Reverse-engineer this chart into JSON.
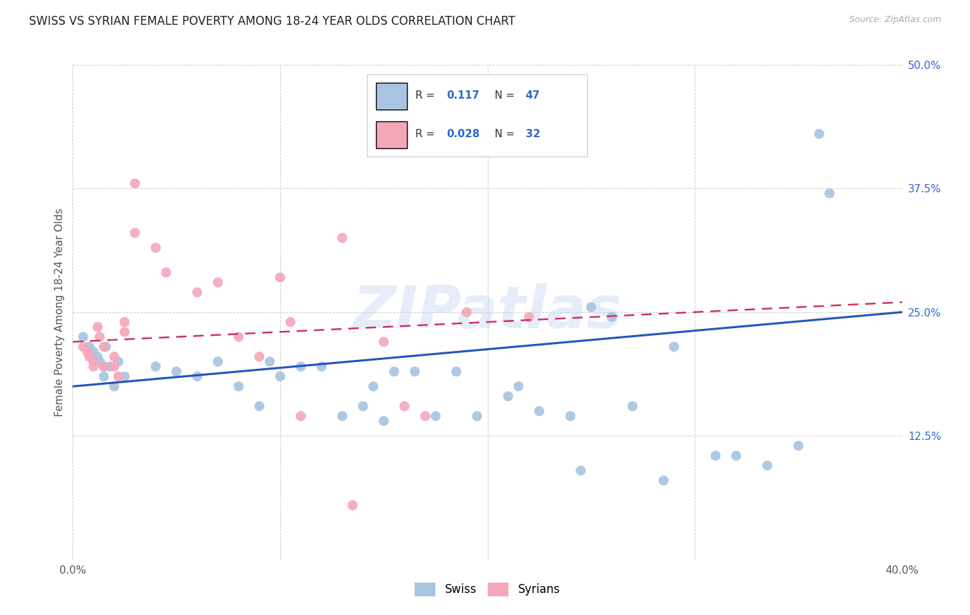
{
  "title": "SWISS VS SYRIAN FEMALE POVERTY AMONG 18-24 YEAR OLDS CORRELATION CHART",
  "source": "Source: ZipAtlas.com",
  "ylabel": "Female Poverty Among 18-24 Year Olds",
  "xlim": [
    0.0,
    0.4
  ],
  "ylim": [
    0.0,
    0.5
  ],
  "xticks": [
    0.0,
    0.1,
    0.2,
    0.3,
    0.4
  ],
  "yticks": [
    0.0,
    0.125,
    0.25,
    0.375,
    0.5
  ],
  "swiss_color": "#a8c4e0",
  "syrian_color": "#f4a7b9",
  "swiss_line_color": "#2255bb",
  "syrian_line_color": "#cc3366",
  "accent_color": "#3366cc",
  "swiss_line_start_y": 0.175,
  "swiss_line_end_y": 0.25,
  "syrian_line_start_y": 0.22,
  "syrian_line_end_y": 0.26,
  "swiss_x": [
    0.005,
    0.008,
    0.01,
    0.012,
    0.013,
    0.015,
    0.015,
    0.016,
    0.018,
    0.02,
    0.022,
    0.025,
    0.04,
    0.05,
    0.06,
    0.07,
    0.08,
    0.09,
    0.095,
    0.1,
    0.11,
    0.12,
    0.13,
    0.14,
    0.145,
    0.15,
    0.155,
    0.165,
    0.175,
    0.185,
    0.195,
    0.21,
    0.215,
    0.225,
    0.24,
    0.245,
    0.25,
    0.26,
    0.27,
    0.285,
    0.29,
    0.31,
    0.32,
    0.335,
    0.35,
    0.36,
    0.365
  ],
  "swiss_y": [
    0.225,
    0.215,
    0.21,
    0.205,
    0.2,
    0.195,
    0.185,
    0.215,
    0.195,
    0.175,
    0.2,
    0.185,
    0.195,
    0.19,
    0.185,
    0.2,
    0.175,
    0.155,
    0.2,
    0.185,
    0.195,
    0.195,
    0.145,
    0.155,
    0.175,
    0.14,
    0.19,
    0.19,
    0.145,
    0.19,
    0.145,
    0.165,
    0.175,
    0.15,
    0.145,
    0.09,
    0.255,
    0.245,
    0.155,
    0.08,
    0.215,
    0.105,
    0.105,
    0.095,
    0.115,
    0.43,
    0.37
  ],
  "syrian_x": [
    0.005,
    0.007,
    0.008,
    0.01,
    0.01,
    0.012,
    0.013,
    0.015,
    0.015,
    0.02,
    0.02,
    0.022,
    0.025,
    0.025,
    0.03,
    0.03,
    0.04,
    0.045,
    0.06,
    0.07,
    0.08,
    0.09,
    0.1,
    0.105,
    0.11,
    0.13,
    0.135,
    0.15,
    0.16,
    0.17,
    0.19,
    0.22
  ],
  "syrian_y": [
    0.215,
    0.21,
    0.205,
    0.2,
    0.195,
    0.235,
    0.225,
    0.215,
    0.195,
    0.205,
    0.195,
    0.185,
    0.24,
    0.23,
    0.38,
    0.33,
    0.315,
    0.29,
    0.27,
    0.28,
    0.225,
    0.205,
    0.285,
    0.24,
    0.145,
    0.325,
    0.055,
    0.22,
    0.155,
    0.145,
    0.25,
    0.245
  ],
  "background_color": "#ffffff",
  "grid_color": "#cccccc"
}
